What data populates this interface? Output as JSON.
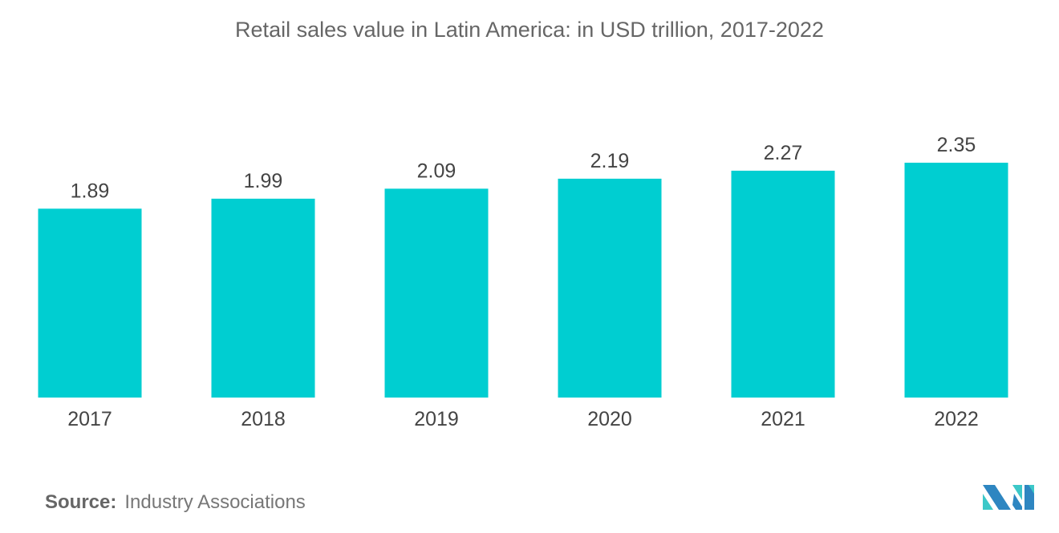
{
  "chart_data": {
    "type": "bar",
    "title": "Retail sales value in Latin America: in USD trillion, 2017-2022",
    "categories": [
      "2017",
      "2018",
      "2019",
      "2020",
      "2021",
      "2022"
    ],
    "values": [
      1.89,
      1.99,
      2.09,
      2.19,
      2.27,
      2.35
    ],
    "data_labels": [
      "1.89",
      "1.99",
      "2.09",
      "2.19",
      "2.27",
      "2.35"
    ],
    "xlabel": "",
    "ylabel": "",
    "ylim": [
      0,
      2.35
    ],
    "grid": false,
    "bar_color": "#00CED1"
  },
  "source": {
    "label": "Source:",
    "text": "Industry Associations"
  },
  "logo": {
    "colors": [
      "#2E86C1",
      "#3CC8C8"
    ]
  }
}
